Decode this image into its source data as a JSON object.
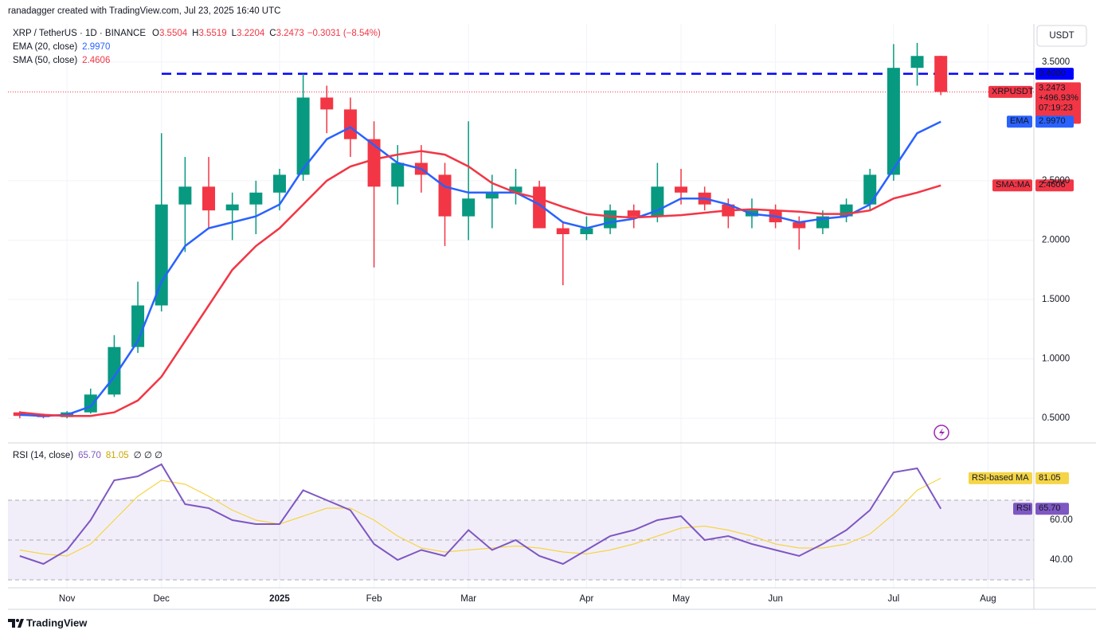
{
  "header": {
    "credit": "ranadagger created with TradingView.com, Jul 23, 2025 16:40 UTC",
    "symbol": "XRP / TetherUS · 1D · BINANCE",
    "ohlc": [
      {
        "key": "O",
        "value": "3.5504"
      },
      {
        "key": "H",
        "value": "3.5519"
      },
      {
        "key": "L",
        "value": "3.2204"
      },
      {
        "key": "C",
        "value": "3.2473"
      }
    ],
    "change": "−0.3031 (−8.54%)"
  },
  "chart_data": [
    {
      "type": "candlestick",
      "currency": "USDT",
      "up_color": "#089981",
      "down_color": "#f23645",
      "grid": true,
      "categories": [
        null,
        null,
        "Nov",
        null,
        null,
        null,
        "Dec",
        null,
        null,
        null,
        null,
        "2025",
        null,
        null,
        null,
        "Feb",
        null,
        null,
        null,
        "Mar",
        null,
        null,
        null,
        null,
        "Apr",
        null,
        null,
        null,
        "May",
        null,
        null,
        null,
        "Jun",
        null,
        null,
        null,
        null,
        "Jul",
        null,
        null,
        null,
        "Aug",
        null
      ],
      "open": [
        0.55,
        0.52,
        0.51,
        0.55,
        0.7,
        1.1,
        1.45,
        2.3,
        2.45,
        2.25,
        2.3,
        2.4,
        2.55,
        3.2,
        3.1,
        2.85,
        2.45,
        2.65,
        2.55,
        2.2,
        2.35,
        2.4,
        2.45,
        2.1,
        2.05,
        2.1,
        2.25,
        2.2,
        2.45,
        2.4,
        2.3,
        2.2,
        2.25,
        2.15,
        2.1,
        2.2,
        2.3,
        2.55,
        3.45,
        3.5504,
        null,
        null,
        null
      ],
      "high": [
        0.56,
        0.54,
        0.56,
        0.75,
        1.2,
        1.65,
        2.9,
        2.7,
        2.7,
        2.4,
        2.5,
        2.6,
        3.4,
        3.3,
        3.2,
        3.0,
        2.8,
        2.8,
        2.65,
        3.0,
        2.55,
        2.6,
        2.5,
        2.15,
        2.2,
        2.3,
        2.3,
        2.65,
        2.6,
        2.45,
        2.35,
        2.35,
        2.3,
        2.2,
        2.25,
        2.35,
        2.6,
        3.65,
        3.66,
        3.5519,
        null,
        null,
        null
      ],
      "low": [
        0.5,
        0.5,
        0.5,
        0.54,
        0.68,
        1.05,
        1.4,
        1.9,
        2.1,
        2.0,
        2.05,
        2.25,
        2.5,
        2.9,
        2.7,
        1.77,
        2.3,
        2.4,
        1.95,
        2.0,
        2.1,
        2.3,
        2.1,
        1.62,
        2.0,
        2.05,
        2.1,
        2.15,
        2.3,
        2.25,
        2.1,
        2.1,
        2.1,
        1.92,
        2.05,
        2.15,
        2.25,
        2.5,
        3.3,
        3.2204,
        null,
        null,
        null
      ],
      "close": [
        0.52,
        0.51,
        0.55,
        0.7,
        1.1,
        1.45,
        2.3,
        2.45,
        2.25,
        2.3,
        2.4,
        2.55,
        3.2,
        3.1,
        2.85,
        2.45,
        2.65,
        2.55,
        2.2,
        2.35,
        2.4,
        2.45,
        2.1,
        2.05,
        2.1,
        2.25,
        2.2,
        2.45,
        2.4,
        2.3,
        2.2,
        2.25,
        2.15,
        2.1,
        2.2,
        2.3,
        2.55,
        3.45,
        3.55,
        3.2473,
        null,
        null,
        null
      ],
      "series": [
        {
          "name": "EMA (20, close)",
          "tag": "EMA",
          "last_label": "2.9970",
          "color": "#2962ff",
          "values": [
            0.53,
            0.52,
            0.53,
            0.6,
            0.85,
            1.15,
            1.65,
            1.95,
            2.1,
            2.15,
            2.2,
            2.3,
            2.6,
            2.85,
            2.95,
            2.8,
            2.65,
            2.6,
            2.45,
            2.4,
            2.4,
            2.4,
            2.3,
            2.15,
            2.1,
            2.15,
            2.18,
            2.25,
            2.35,
            2.35,
            2.3,
            2.22,
            2.2,
            2.15,
            2.18,
            2.2,
            2.3,
            2.6,
            2.9,
            2.997,
            null,
            null,
            null
          ]
        },
        {
          "name": "SMA (50, close)",
          "tag": "SMA:MA",
          "last_label": "2.4606",
          "color": "#f23645",
          "values": [
            0.55,
            0.53,
            0.52,
            0.52,
            0.55,
            0.65,
            0.85,
            1.15,
            1.45,
            1.75,
            1.95,
            2.1,
            2.3,
            2.5,
            2.62,
            2.68,
            2.72,
            2.75,
            2.72,
            2.62,
            2.48,
            2.4,
            2.35,
            2.28,
            2.22,
            2.2,
            2.19,
            2.2,
            2.21,
            2.23,
            2.25,
            2.26,
            2.25,
            2.24,
            2.22,
            2.22,
            2.25,
            2.35,
            2.4,
            2.4606,
            null,
            null,
            null
          ]
        }
      ],
      "hline": {
        "value": 3.4,
        "label": "3.4000",
        "color": "#0000ff"
      },
      "price_tag": {
        "symbol": "XRPUSDT",
        "price": "3.2473",
        "change": "+496.93%",
        "countdown": "07:19:23"
      },
      "ylim": [
        0.3,
        3.82
      ],
      "yticks": [
        {
          "value": 0.5,
          "label": "0.5000"
        },
        {
          "value": 1,
          "label": "1.0000"
        },
        {
          "value": 1.5,
          "label": "1.5000"
        },
        {
          "value": 2,
          "label": "2.0000"
        },
        {
          "value": 2.5,
          "label": "2.5000"
        },
        {
          "value": 3.5,
          "label": "3.5000"
        }
      ]
    },
    {
      "type": "line",
      "title": "RSI (14, close)",
      "extra": "∅ ∅ ∅",
      "series": [
        {
          "name": "RSI",
          "last_label": "65.70",
          "color": "#7e57c2",
          "values": [
            42,
            38,
            45,
            60,
            80,
            82,
            88,
            68,
            66,
            60,
            58,
            58,
            75,
            70,
            65,
            48,
            40,
            45,
            42,
            55,
            45,
            50,
            42,
            38,
            45,
            52,
            55,
            60,
            62,
            50,
            52,
            48,
            45,
            42,
            48,
            55,
            65,
            84,
            86,
            65.7,
            null,
            null,
            null
          ]
        },
        {
          "name": "RSI-based MA",
          "last_label": "81.05",
          "color": "#f5d547",
          "values": [
            45,
            43,
            42,
            48,
            60,
            72,
            80,
            78,
            72,
            65,
            60,
            58,
            62,
            66,
            66,
            60,
            52,
            46,
            44,
            45,
            46,
            47,
            46,
            44,
            43,
            45,
            48,
            52,
            56,
            57,
            55,
            52,
            48,
            46,
            46,
            48,
            53,
            63,
            75,
            81.05,
            null,
            null,
            null
          ]
        }
      ],
      "band": [
        30,
        70
      ],
      "midline": 50,
      "ylim": [
        26,
        98
      ],
      "yticks": [
        {
          "value": 40,
          "label": "40.00"
        },
        {
          "value": 60,
          "label": "60.00"
        }
      ]
    }
  ],
  "footer": "TradingView"
}
